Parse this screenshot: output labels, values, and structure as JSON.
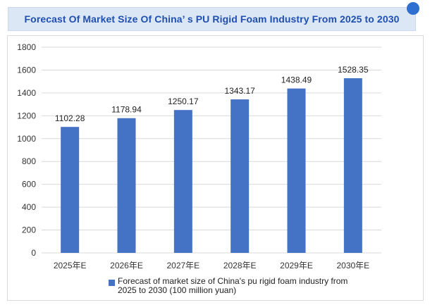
{
  "header": {
    "title": "Forecast Of Market Size Of China’ s PU Rigid Foam Industry From 2025 to 2030"
  },
  "colors": {
    "bar": "#4472c4",
    "title_text": "#1f4fb0",
    "title_bg": "#dbe7f5",
    "grid": "#d9d9d9",
    "badge": "#2f6fd0"
  },
  "chart_data": {
    "type": "bar",
    "title": "",
    "xlabel": "",
    "ylabel": "",
    "categories": [
      "2025年E",
      "2026年E",
      "2027年E",
      "2028年E",
      "2029年E",
      "2030年E"
    ],
    "series": [
      {
        "name": "Forecast of market size of China's pu rigid foam industry from 2025 to 2030 (100 million yuan)",
        "values": [
          1102.28,
          1178.94,
          1250.17,
          1343.17,
          1438.49,
          1528.35
        ],
        "data_labels": [
          "1102.28",
          "1178.94",
          "1250.17",
          "1343.17",
          "1438.49",
          "1528.35"
        ]
      }
    ],
    "ylim": [
      0,
      1800
    ],
    "yticks": [
      0,
      200,
      400,
      600,
      800,
      1000,
      1200,
      1400,
      1600,
      1800
    ],
    "grid": true,
    "legend_position": "bottom"
  }
}
